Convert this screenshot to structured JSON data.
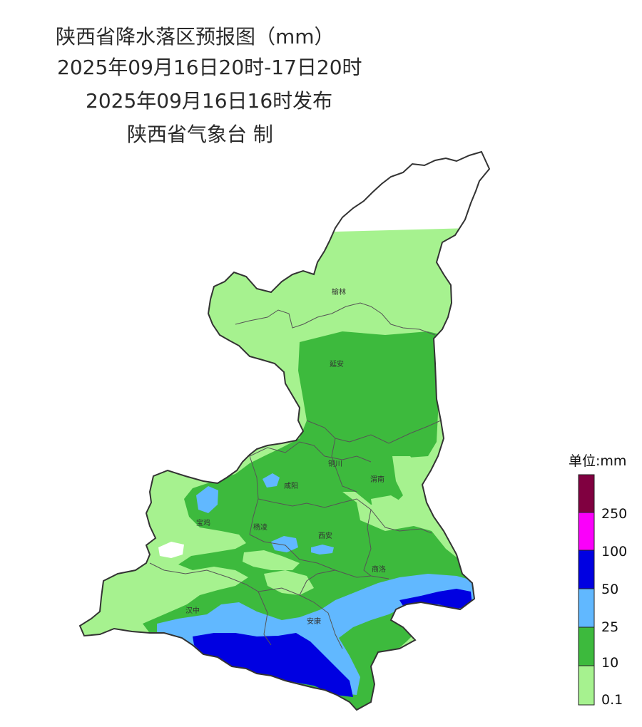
{
  "header": {
    "title": "陕西省降水落区预报图（mm）",
    "period": "2025年09月16日20时-17日20时",
    "issued": "2025年09月16日16时发布",
    "publisher": "陕西省气象台 制"
  },
  "cities": [
    "榆林",
    "延安",
    "铜川",
    "渭南",
    "咸阳",
    "宝鸡",
    "杨凌",
    "西安",
    "商洛",
    "汉中",
    "安康"
  ],
  "legend": {
    "unit": "单位:mm",
    "labels": [
      "250",
      "100",
      "50",
      "25",
      "10",
      "0.1"
    ],
    "colors": {
      "c_0_1": "#a6f28f",
      "c_10": "#3dba3d",
      "c_25": "#61b8ff",
      "c_50": "#0000e1",
      "c_100": "#fa00fa",
      "c_250": "#800040"
    }
  }
}
